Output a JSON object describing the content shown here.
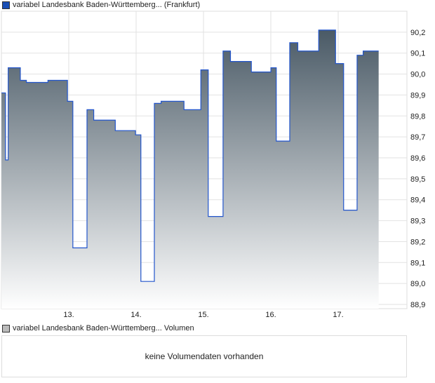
{
  "chart_data": {
    "type": "area",
    "title": "variabel Landesbank Baden-Württemberg... (Frankfurt)",
    "legend_color": "#1a4fb5",
    "line_color": "#2255cc",
    "fill_top": "#4a5a66",
    "fill_bottom": "#ffffff",
    "ylim": [
      88.88,
      90.3
    ],
    "xlim": [
      11.98,
      18.0
    ],
    "yticks": [
      88.9,
      89.0,
      89.1,
      89.2,
      89.3,
      89.4,
      89.5,
      89.6,
      89.7,
      89.8,
      89.9,
      90.0,
      90.1,
      90.2
    ],
    "ytick_labels": [
      "88,9",
      "89,0",
      "89,1",
      "89,2",
      "89,3",
      "89,4",
      "89,5",
      "89,6",
      "89,7",
      "89,8",
      "89,9",
      "90,0",
      "90,1",
      "90,2"
    ],
    "xticks": [
      13,
      14,
      15,
      16,
      17
    ],
    "xtick_labels": [
      "13.",
      "14.",
      "15.",
      "16.",
      "17."
    ],
    "steps": [
      [
        11.98,
        89.91
      ],
      [
        12.04,
        89.59
      ],
      [
        12.08,
        90.03
      ],
      [
        12.26,
        89.97
      ],
      [
        12.35,
        89.96
      ],
      [
        12.67,
        89.97
      ],
      [
        12.96,
        89.87
      ],
      [
        13.04,
        89.17
      ],
      [
        13.25,
        89.83
      ],
      [
        13.35,
        89.78
      ],
      [
        13.67,
        89.73
      ],
      [
        13.97,
        89.71
      ],
      [
        14.05,
        89.01
      ],
      [
        14.25,
        89.86
      ],
      [
        14.35,
        89.87
      ],
      [
        14.69,
        89.83
      ],
      [
        14.94,
        90.02
      ],
      [
        15.05,
        89.32
      ],
      [
        15.27,
        90.11
      ],
      [
        15.38,
        90.06
      ],
      [
        15.69,
        90.01
      ],
      [
        15.98,
        90.03
      ],
      [
        16.06,
        89.68
      ],
      [
        16.26,
        90.15
      ],
      [
        16.38,
        90.11
      ],
      [
        16.69,
        90.21
      ],
      [
        16.94,
        90.05
      ],
      [
        17.06,
        89.35
      ],
      [
        17.26,
        90.09
      ],
      [
        17.35,
        90.11
      ]
    ],
    "x_end": 17.58
  },
  "volume": {
    "legend": "variabel Landesbank Baden-Württemberg... Volumen",
    "legend_color": "#bbbbbb",
    "message": "keine Volumendaten vorhanden"
  }
}
